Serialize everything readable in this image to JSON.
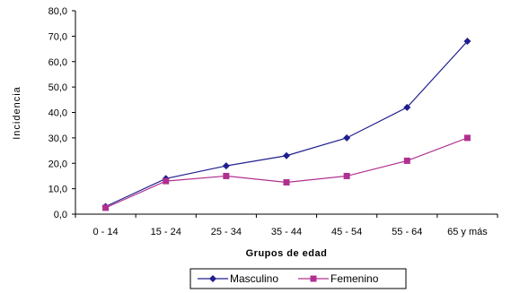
{
  "chart_data": {
    "type": "line",
    "title": "",
    "xlabel": "Grupos de edad",
    "ylabel": "Incidencia",
    "categories": [
      "0 - 14",
      "15 - 24",
      "25 - 34",
      "35 - 44",
      "45 - 54",
      "55 - 64",
      "65 y más"
    ],
    "ylim": [
      0,
      80
    ],
    "yticks": [
      "0,0",
      "10,0",
      "20,0",
      "30,0",
      "40,0",
      "50,0",
      "60,0",
      "70,0",
      "80,0"
    ],
    "grid": false,
    "legend_position": "bottom",
    "series": [
      {
        "name": "Masculino",
        "values": [
          3.0,
          14.0,
          19.0,
          23.0,
          30.0,
          42.0,
          68.0
        ],
        "color": "#1F1F8F",
        "marker": "diamond"
      },
      {
        "name": "Femenino",
        "values": [
          2.5,
          13.0,
          15.0,
          12.5,
          15.0,
          21.0,
          30.0
        ],
        "color": "#B0308F",
        "marker": "square"
      }
    ]
  }
}
